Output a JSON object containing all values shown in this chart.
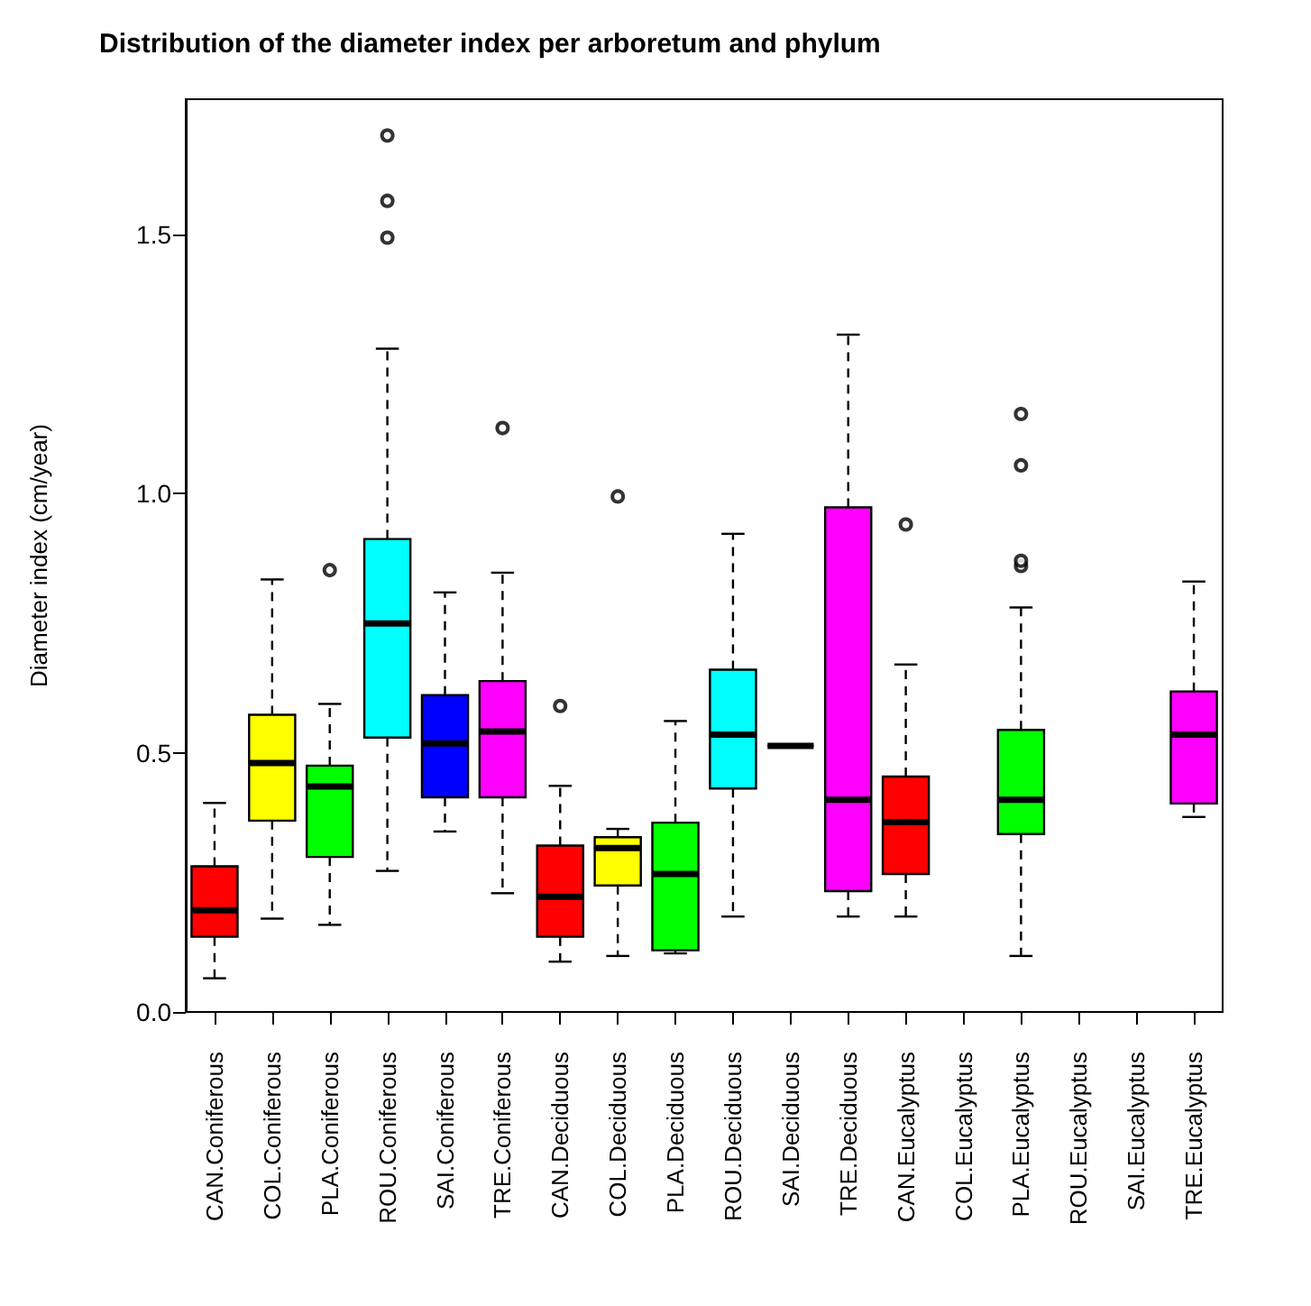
{
  "chart_data": {
    "type": "box",
    "title": "Distribution of the diameter index per arboretum and phylum",
    "ylabel": "Diameter index (cm/year)",
    "categories": [
      "CAN.Coniferous",
      "COL.Coniferous",
      "PLA.Coniferous",
      "ROU.Coniferous",
      "SAI.Coniferous",
      "TRE.Coniferous",
      "CAN.Deciduous",
      "COL.Deciduous",
      "PLA.Deciduous",
      "ROU.Deciduous",
      "SAI.Deciduous",
      "TRE.Deciduous",
      "CAN.Eucalyptus",
      "COL.Eucalyptus",
      "PLA.Eucalyptus",
      "ROU.Eucalyptus",
      "SAI.Eucalyptus",
      "TRE.Eucalyptus"
    ],
    "colors": [
      "#ff0000",
      "#ffff00",
      "#00ff00",
      "#00ffff",
      "#0000ff",
      "#ff00ff",
      "#ff0000",
      "#ffff00",
      "#00ff00",
      "#00ffff",
      "#000000",
      "#ff00ff",
      "#ff0000",
      null,
      "#00ff00",
      null,
      null,
      "#ff00ff"
    ],
    "boxes": [
      {
        "low": 0.065,
        "q1": 0.145,
        "median": 0.196,
        "q3": 0.281,
        "high": 0.403
      },
      {
        "low": 0.18,
        "q1": 0.369,
        "median": 0.48,
        "q3": 0.573,
        "high": 0.834
      },
      {
        "low": 0.168,
        "q1": 0.299,
        "median": 0.435,
        "q3": 0.475,
        "high": 0.594,
        "outliers": [
          0.852
        ]
      },
      {
        "low": 0.272,
        "q1": 0.529,
        "median": 0.749,
        "q3": 0.912,
        "high": 1.279,
        "outliers": [
          1.493,
          1.564,
          1.69
        ]
      },
      {
        "low": 0.348,
        "q1": 0.414,
        "median": 0.518,
        "q3": 0.611,
        "high": 0.809
      },
      {
        "low": 0.229,
        "q1": 0.414,
        "median": 0.541,
        "q3": 0.638,
        "high": 0.847,
        "outliers": [
          1.126
        ]
      },
      {
        "low": 0.097,
        "q1": 0.145,
        "median": 0.222,
        "q3": 0.321,
        "high": 0.436,
        "outliers": [
          0.59
        ]
      },
      {
        "low": 0.108,
        "q1": 0.244,
        "median": 0.316,
        "q3": 0.337,
        "high": 0.353,
        "outliers": [
          0.994
        ]
      },
      {
        "low": 0.113,
        "q1": 0.119,
        "median": 0.266,
        "q3": 0.365,
        "high": 0.561
      },
      {
        "low": 0.184,
        "q1": 0.431,
        "median": 0.535,
        "q3": 0.66,
        "high": 0.922
      },
      {
        "low": 0.513,
        "q1": 0.513,
        "median": 0.513,
        "q3": 0.513,
        "high": 0.513
      },
      {
        "low": 0.184,
        "q1": 0.233,
        "median": 0.409,
        "q3": 0.973,
        "high": 1.306
      },
      {
        "low": 0.184,
        "q1": 0.266,
        "median": 0.366,
        "q3": 0.454,
        "high": 0.67,
        "outliers": [
          0.94
        ]
      },
      null,
      {
        "low": 0.108,
        "q1": 0.343,
        "median": 0.409,
        "q3": 0.544,
        "high": 0.78,
        "outliers": [
          0.86,
          0.87,
          1.054,
          1.153
        ]
      },
      null,
      null,
      {
        "low": 0.376,
        "q1": 0.402,
        "median": 0.535,
        "q3": 0.618,
        "high": 0.83
      }
    ],
    "ylim": [
      0,
      1.76
    ],
    "yticks": [
      {
        "value": 0,
        "label": "0.0"
      },
      {
        "value": 0.5,
        "label": "0.5"
      },
      {
        "value": 1,
        "label": "1.0"
      },
      {
        "value": 1.5,
        "label": "1.5"
      }
    ],
    "grid": false,
    "line_style": "dashed",
    "marker": "circle"
  }
}
